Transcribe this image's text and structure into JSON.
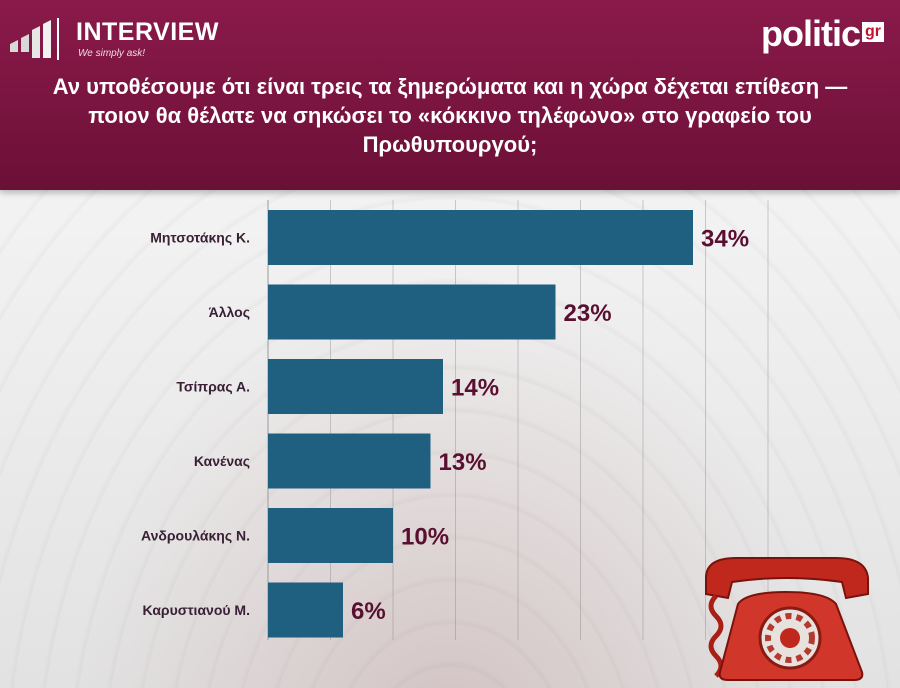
{
  "header": {
    "brand_name": "INTERVIEW",
    "brand_tagline": "We simply ask!",
    "logo_text": "politic",
    "logo_badge": "gr",
    "question": "Αν υποθέσουμε ότι είναι τρεις τα ξημερώματα και η χώρα δέχεται επίθεση — ποιον θα θέλατε να σηκώσει το «κόκκινο τηλέφωνο» στο γραφείο του Πρωθυπουργού;"
  },
  "colors": {
    "header_bg": "#7a1440",
    "bar": "#1f5f7f",
    "value_text": "#5a0f30",
    "label_text": "#3a2035"
  },
  "icons": {
    "brand": "bar-logo-icon",
    "illustration": "red-telephone-icon"
  },
  "chart_data": {
    "type": "bar",
    "orientation": "horizontal",
    "categories": [
      "Μητσοτάκης Κ.",
      "Άλλος",
      "Τσίπρας Α.",
      "Κανένας",
      "Ανδρουλάκης Ν.",
      "Καρυστιανού Μ."
    ],
    "values": [
      34,
      23,
      14,
      13,
      10,
      6
    ],
    "value_labels": [
      "34%",
      "23%",
      "14%",
      "13%",
      "10%",
      "6%"
    ],
    "xlim": [
      0,
      40
    ],
    "grid": true
  }
}
